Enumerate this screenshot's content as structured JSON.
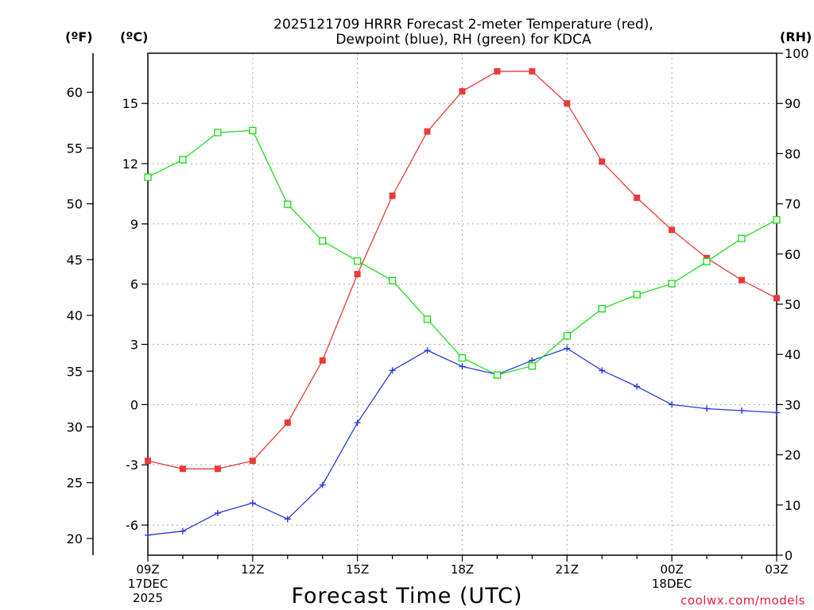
{
  "chart_data": {
    "type": "line",
    "title_line1": "2025121709 HRRR Forecast 2-meter Temperature (red),",
    "title_line2": "Dewpoint (blue), RH (green) for KDCA",
    "xlabel": "Forecast Time (UTC)",
    "credit": "coolwx.com/models",
    "unit_f": "(ºF)",
    "unit_c": "(ºC)",
    "unit_rh": "(RH)",
    "hours": [
      0,
      1,
      2,
      3,
      4,
      5,
      6,
      7,
      8,
      9,
      10,
      11,
      12,
      13,
      14,
      15,
      16,
      17,
      18
    ],
    "x_ticks": [
      {
        "h": 0,
        "lines": [
          "09Z",
          "17DEC",
          "2025"
        ]
      },
      {
        "h": 3,
        "lines": [
          "12Z"
        ]
      },
      {
        "h": 6,
        "lines": [
          "15Z"
        ]
      },
      {
        "h": 9,
        "lines": [
          "18Z"
        ]
      },
      {
        "h": 12,
        "lines": [
          "21Z"
        ]
      },
      {
        "h": 15,
        "lines": [
          "00Z",
          "18DEC"
        ]
      },
      {
        "h": 18,
        "lines": [
          "03Z"
        ]
      }
    ],
    "c_axis": {
      "range": [
        -7.5,
        17.5
      ],
      "ticks": [
        "-6",
        "-3",
        "0",
        "3",
        "6",
        "9",
        "12",
        "15"
      ]
    },
    "f_axis": {
      "range": [
        18.5,
        63.5
      ],
      "ticks": [
        "20",
        "25",
        "30",
        "35",
        "40",
        "45",
        "50",
        "55",
        "60"
      ]
    },
    "rh_axis": {
      "range": [
        0,
        100
      ],
      "ticks": [
        "0",
        "10",
        "20",
        "30",
        "40",
        "50",
        "60",
        "70",
        "80",
        "90",
        "100"
      ]
    },
    "series": [
      {
        "name": "2-meter Temperature",
        "unit": "C",
        "color": "#e83a3a",
        "marker": "filled-square",
        "values": [
          -2.8,
          -3.2,
          -3.2,
          -2.8,
          -0.9,
          2.2,
          6.5,
          10.4,
          13.6,
          15.6,
          16.6,
          16.6,
          15.0,
          12.1,
          10.3,
          8.7,
          7.3,
          6.2,
          5.3
        ]
      },
      {
        "name": "Dewpoint",
        "unit": "C",
        "color": "#2a3ad8",
        "marker": "plus",
        "values": [
          -6.5,
          -6.3,
          -5.4,
          -4.9,
          -5.7,
          -4.0,
          -0.9,
          1.7,
          2.7,
          1.9,
          1.5,
          2.2,
          2.8,
          1.7,
          0.9,
          0.0,
          -0.2,
          -0.3,
          -0.4
        ]
      },
      {
        "name": "RH",
        "unit": "%",
        "color": "#22dd22",
        "marker": "open-square",
        "values": [
          75.3,
          78.8,
          84.2,
          84.6,
          69.9,
          62.6,
          58.6,
          54.7,
          47.0,
          39.3,
          35.9,
          37.7,
          43.7,
          49.1,
          51.9,
          54.1,
          58.5,
          63.1,
          66.8
        ]
      }
    ]
  }
}
